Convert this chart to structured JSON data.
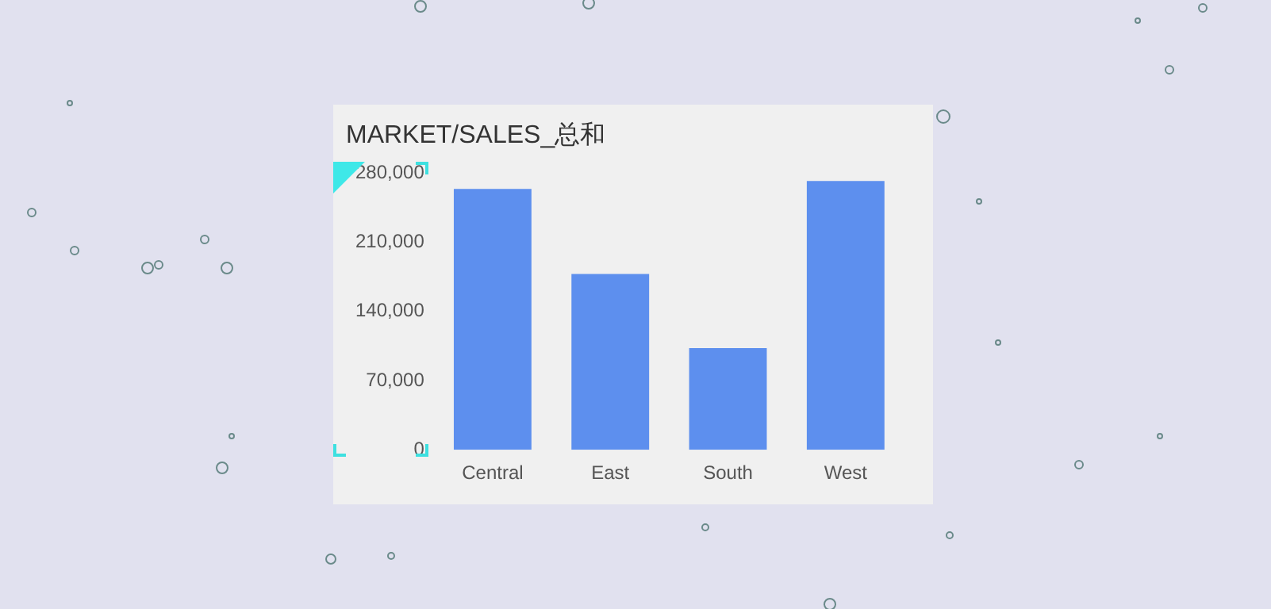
{
  "chart_data": {
    "type": "bar",
    "title": "MARKET/SALES_总和",
    "categories": [
      "Central",
      "East",
      "South",
      "West"
    ],
    "values": [
      264000,
      178000,
      103000,
      272000
    ],
    "color": "#5d8fee",
    "ylim": [
      0,
      280000
    ],
    "yticks": [
      {
        "value": 0,
        "label": "0"
      },
      {
        "value": 70000,
        "label": "70,000"
      },
      {
        "value": 140000,
        "label": "140,000"
      },
      {
        "value": 210000,
        "label": "210,000"
      },
      {
        "value": 280000,
        "label": "280,000"
      }
    ],
    "grid": false,
    "legend": false
  }
}
